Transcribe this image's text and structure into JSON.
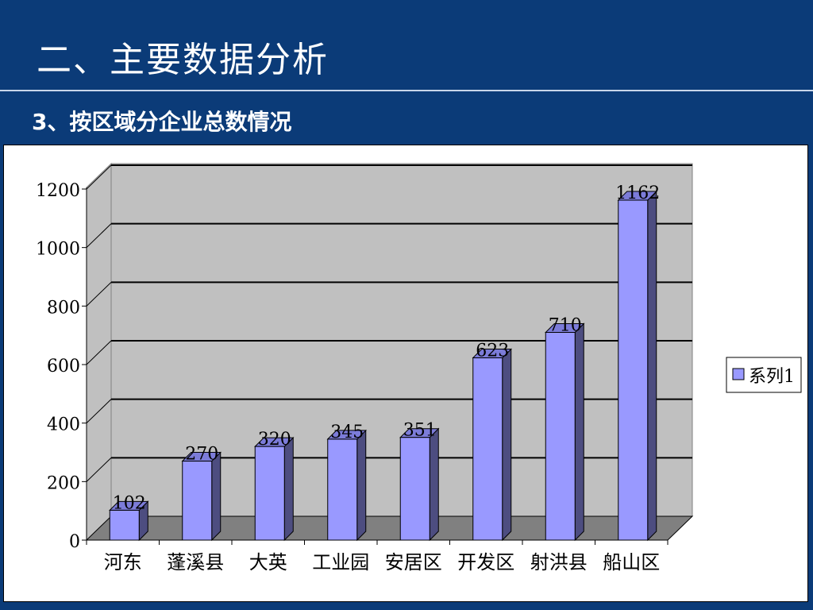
{
  "slide": {
    "title": "二、主要数据分析",
    "subtitle": "3、按区域分企业总数情况"
  },
  "colors": {
    "background": "#0b3b78",
    "bar_front": "#9999ff",
    "bar_side": "#4d4d80",
    "bar_top": "#7c7cd9",
    "wall": "#c0c0c0",
    "floor": "#808080"
  },
  "chart_data": {
    "type": "bar",
    "style": "3d-column",
    "categories": [
      "河东",
      "蓬溪县",
      "大英",
      "工业园",
      "安居区",
      "开发区",
      "射洪县",
      "船山区"
    ],
    "series": [
      {
        "name": "系列1",
        "values": [
          102,
          270,
          320,
          345,
          351,
          623,
          710,
          1162
        ]
      }
    ],
    "data_labels": [
      "102",
      "270",
      "320",
      "345",
      "351",
      "623",
      "710",
      "1162"
    ],
    "y_ticks": [
      "0",
      "200",
      "400",
      "600",
      "800",
      "1000",
      "1200"
    ],
    "ylim": [
      0,
      1200
    ],
    "grid": true,
    "legend": "right"
  }
}
